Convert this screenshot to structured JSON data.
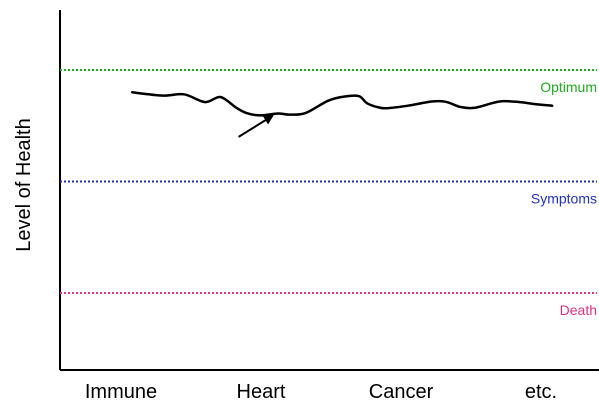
{
  "chart_data": {
    "type": "line",
    "ylabel": "Level of Health",
    "categories": [
      "Immune",
      "Heart",
      "Cancer",
      "etc."
    ],
    "grid": false,
    "reference_lines": [
      {
        "label": "Optimum",
        "y": 100,
        "color": "#22aa22"
      },
      {
        "label": "Symptoms",
        "y": 60,
        "color": "#2233bb"
      },
      {
        "label": "Death",
        "y": 20,
        "color": "#dd3388"
      }
    ],
    "series": [
      {
        "color": "#000000",
        "x": [
          0.08,
          0.3,
          0.45,
          0.6,
          0.71,
          0.82,
          0.9,
          1.0,
          1.12,
          1.2,
          1.32,
          1.48,
          1.6,
          1.7,
          1.76,
          1.84,
          1.9,
          2.05,
          2.22,
          2.32,
          2.42,
          2.52,
          2.65,
          2.72,
          2.85,
          2.95,
          3.08
        ],
        "y": [
          92,
          90.8,
          91.3,
          88.5,
          90.3,
          86.6,
          84.5,
          83.7,
          84.4,
          84.0,
          84.6,
          89.0,
          90.5,
          90.6,
          88.0,
          86.6,
          86.3,
          87.2,
          88.7,
          88.6,
          86.8,
          86.4,
          88.1,
          88.8,
          88.5,
          87.8,
          87.2
        ]
      }
    ],
    "annotations": [
      {
        "type": "arrow",
        "from": [
          0.84,
          76
        ],
        "to": [
          1.08,
          83.5
        ]
      }
    ]
  }
}
